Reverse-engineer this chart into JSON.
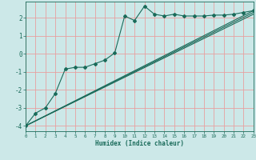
{
  "bg_color": "#cce8e8",
  "grid_color": "#e8a0a0",
  "line_color": "#1a6b5a",
  "line_width": 0.8,
  "marker": "D",
  "marker_size": 2.0,
  "xlabel": "Humidex (Indice chaleur)",
  "xlim": [
    0,
    23
  ],
  "ylim": [
    -4.3,
    2.9
  ],
  "xticks": [
    0,
    1,
    2,
    3,
    4,
    5,
    6,
    7,
    8,
    9,
    10,
    11,
    12,
    13,
    14,
    15,
    16,
    17,
    18,
    19,
    20,
    21,
    22,
    23
  ],
  "yticks": [
    -4,
    -3,
    -2,
    -1,
    0,
    1,
    2
  ],
  "series1_x": [
    0,
    1,
    2,
    3,
    4,
    5,
    6,
    7,
    8,
    9,
    10,
    11,
    12,
    13,
    14,
    15,
    16,
    17,
    18,
    19,
    20,
    21,
    22,
    23
  ],
  "series1_y": [
    -4.0,
    -3.3,
    -3.0,
    -2.2,
    -0.85,
    -0.75,
    -0.75,
    -0.55,
    -0.35,
    0.05,
    2.1,
    1.85,
    2.65,
    2.2,
    2.1,
    2.2,
    2.1,
    2.1,
    2.1,
    2.15,
    2.15,
    2.2,
    2.3,
    2.4
  ],
  "series2_x": [
    0,
    23
  ],
  "series2_y": [
    -4.0,
    2.4
  ],
  "series3_x": [
    0,
    23
  ],
  "series3_y": [
    -4.0,
    2.3
  ],
  "series4_x": [
    0,
    23
  ],
  "series4_y": [
    -4.0,
    2.2
  ]
}
